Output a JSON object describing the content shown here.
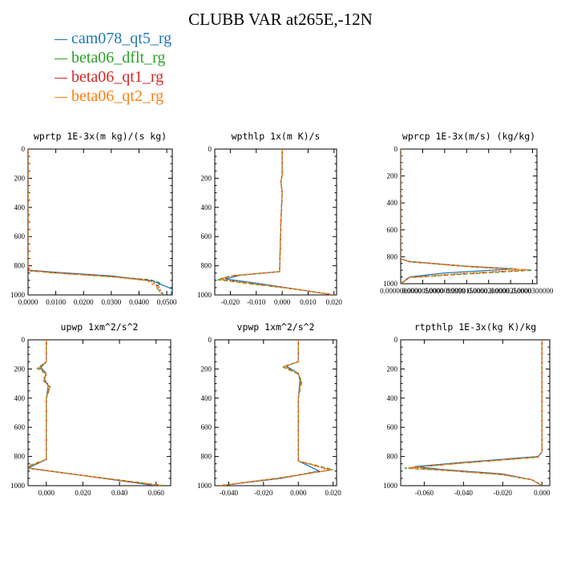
{
  "title": "CLUBB VAR at265E,-12N",
  "legend": [
    {
      "name": "cam078_qt5_rg",
      "color": "#1f77b4",
      "dash": ""
    },
    {
      "name": "beta06_dflt_rg",
      "color": "#2ca02c",
      "dash": "5,3"
    },
    {
      "name": "beta06_qt1_rg",
      "color": "#d62728",
      "dash": "2,2"
    },
    {
      "name": "beta06_qt2_rg",
      "color": "#ff7f0e",
      "dash": "4,2"
    }
  ],
  "chart_data": [
    {
      "type": "line",
      "title": "wprtp  1E-3x(m kg)/(s kg)",
      "xlim": [
        0.0,
        0.052
      ],
      "ylim": [
        1000,
        0
      ],
      "xticks": [
        "0.0000",
        "0.0100",
        "0.0200",
        "0.0300",
        "0.0400",
        "0.0500"
      ],
      "xtick_values": [
        0.0,
        0.01,
        0.02,
        0.03,
        0.04,
        0.05
      ],
      "yticks": [
        "0",
        "200",
        "400",
        "600",
        "800",
        "1000"
      ],
      "ytick_values": [
        0,
        200,
        400,
        600,
        800,
        1000
      ],
      "series": [
        {
          "x": [
            0,
            0,
            0.0004,
            0.01,
            0.03,
            0.045,
            0.052,
            0.0515
          ],
          "y": [
            0,
            800,
            830,
            845,
            870,
            905,
            960,
            1000
          ]
        },
        {
          "x": [
            0,
            0,
            0.0004,
            0.01,
            0.03,
            0.044,
            0.048,
            0.046,
            0.049
          ],
          "y": [
            0,
            800,
            835,
            850,
            875,
            895,
            920,
            945,
            1000
          ]
        },
        {
          "x": [
            0,
            0,
            0.0004,
            0.01,
            0.03,
            0.044,
            0.047,
            0.0485
          ],
          "y": [
            0,
            800,
            832,
            848,
            873,
            900,
            940,
            1000
          ]
        },
        {
          "x": [
            0,
            0,
            0.0004,
            0.01,
            0.03,
            0.043,
            0.0465,
            0.048
          ],
          "y": [
            0,
            800,
            834,
            850,
            876,
            902,
            945,
            1000
          ]
        }
      ]
    },
    {
      "type": "line",
      "title": "wpthlp  1x(m K)/s",
      "xlim": [
        -0.026,
        0.021
      ],
      "ylim": [
        1000,
        0
      ],
      "xticks": [
        "-0.020",
        "-0.010",
        "0.000",
        "0.010",
        "0.020"
      ],
      "xtick_values": [
        -0.02,
        -0.01,
        0.0,
        0.01,
        0.02
      ],
      "yticks": [
        "0",
        "200",
        "400",
        "600",
        "800",
        "1000"
      ],
      "ytick_values": [
        0,
        200,
        400,
        600,
        800,
        1000
      ],
      "series": [
        {
          "x": [
            0,
            0,
            -0.0005,
            0,
            -0.0005,
            -0.001,
            -0.016,
            -0.022,
            -0.01,
            0.005,
            0.02
          ],
          "y": [
            0,
            180,
            220,
            300,
            500,
            840,
            865,
            890,
            920,
            960,
            1000
          ]
        },
        {
          "x": [
            0,
            0,
            -0.0005,
            0,
            -0.0005,
            -0.001,
            -0.02,
            -0.025,
            -0.012,
            0.005,
            0.02
          ],
          "y": [
            0,
            180,
            220,
            300,
            500,
            840,
            870,
            895,
            925,
            960,
            1000
          ]
        },
        {
          "x": [
            0,
            0,
            -0.0005,
            0,
            -0.0005,
            -0.001,
            -0.019,
            -0.024,
            -0.011,
            0.005,
            0.02
          ],
          "y": [
            0,
            180,
            220,
            300,
            500,
            840,
            868,
            893,
            923,
            960,
            1000
          ]
        },
        {
          "x": [
            0,
            0,
            -0.0005,
            0,
            -0.0005,
            -0.001,
            -0.019,
            -0.024,
            -0.011,
            0.005,
            0.02
          ],
          "y": [
            0,
            180,
            220,
            300,
            500,
            840,
            868,
            894,
            924,
            960,
            1000
          ]
        }
      ]
    },
    {
      "type": "line",
      "title": "wprcp  1E-3x(m/s) (kg/kg)",
      "xlim": [
        0.0,
        3.1e-05
      ],
      "ylim": [
        1000,
        0
      ],
      "xticks": [
        "0.0000000000",
        "0.0000050000",
        "0.0000099999",
        "0.0000150000",
        "0.0000200000",
        "0.0000250000",
        "0.0000300000"
      ],
      "xtick_values": [
        0.0,
        5e-06,
        9.9999e-06,
        1.5e-05,
        2e-05,
        2.5e-05,
        3e-05
      ],
      "yticks": [
        "0",
        "200",
        "400",
        "600",
        "800",
        "1000"
      ],
      "ytick_values": [
        0,
        200,
        400,
        600,
        800,
        1000
      ],
      "series": [
        {
          "x": [
            0,
            0,
            2e-06,
            1.5e-05,
            2.6e-05,
            1e-05,
            2e-06,
            0
          ],
          "y": [
            0,
            815,
            835,
            870,
            890,
            920,
            950,
            1000
          ]
        },
        {
          "x": [
            0,
            0,
            2e-06,
            1.6e-05,
            3e-05,
            1.4e-05,
            2e-06,
            0
          ],
          "y": [
            0,
            815,
            838,
            875,
            900,
            930,
            955,
            1000
          ]
        },
        {
          "x": [
            0,
            0,
            2e-06,
            1.6e-05,
            2.9e-05,
            1.3e-05,
            2e-06,
            0
          ],
          "y": [
            0,
            815,
            836,
            873,
            897,
            927,
            953,
            1000
          ]
        },
        {
          "x": [
            0,
            0,
            2e-06,
            1.6e-05,
            2.9e-05,
            1.3e-05,
            2e-06,
            0
          ],
          "y": [
            0,
            815,
            837,
            874,
            898,
            928,
            954,
            1000
          ]
        }
      ]
    },
    {
      "type": "line",
      "title": "upwp  1xm^2/s^2",
      "xlim": [
        -0.01,
        0.068
      ],
      "ylim": [
        1000,
        0
      ],
      "xticks": [
        "0.000",
        "0.020",
        "0.040",
        "0.060"
      ],
      "xtick_values": [
        0.0,
        0.02,
        0.04,
        0.06
      ],
      "yticks": [
        "0",
        "200",
        "400",
        "600",
        "800",
        "1000"
      ],
      "ytick_values": [
        0,
        200,
        400,
        600,
        800,
        1000
      ],
      "series": [
        {
          "x": [
            0,
            0,
            -0.003,
            0,
            -0.001,
            0.001,
            0,
            0,
            -0.01,
            0.02,
            0.06
          ],
          "y": [
            0,
            150,
            190,
            230,
            270,
            320,
            400,
            820,
            880,
            930,
            1000
          ]
        },
        {
          "x": [
            0,
            0,
            -0.005,
            0,
            -0.002,
            0.002,
            0,
            0,
            -0.012,
            0.02,
            0.065
          ],
          "y": [
            0,
            150,
            195,
            235,
            275,
            325,
            400,
            820,
            875,
            930,
            1000
          ]
        },
        {
          "x": [
            0,
            0,
            -0.004,
            0,
            -0.001,
            0.002,
            0,
            0,
            -0.011,
            0.02,
            0.062
          ],
          "y": [
            0,
            150,
            192,
            232,
            272,
            322,
            400,
            820,
            878,
            930,
            1000
          ]
        },
        {
          "x": [
            0,
            0,
            -0.004,
            0,
            -0.0015,
            0.0015,
            0,
            0,
            -0.011,
            0.02,
            0.064
          ],
          "y": [
            0,
            150,
            193,
            233,
            273,
            323,
            400,
            820,
            877,
            930,
            1000
          ]
        }
      ]
    },
    {
      "type": "line",
      "title": "vpwp  1xm^2/s^2",
      "xlim": [
        -0.048,
        0.022
      ],
      "ylim": [
        1000,
        0
      ],
      "xticks": [
        "-0.040",
        "-0.020",
        "0.000",
        "0.020"
      ],
      "xtick_values": [
        -0.04,
        -0.02,
        0.0,
        0.02
      ],
      "yticks": [
        "0",
        "200",
        "400",
        "600",
        "800",
        "1000"
      ],
      "ytick_values": [
        0,
        200,
        400,
        600,
        800,
        1000
      ],
      "series": [
        {
          "x": [
            0,
            0,
            -0.007,
            0,
            0.001,
            0,
            0,
            0.012,
            -0.01,
            -0.045
          ],
          "y": [
            0,
            150,
            180,
            230,
            280,
            400,
            830,
            900,
            950,
            1000
          ]
        },
        {
          "x": [
            0,
            0,
            -0.009,
            0,
            0.002,
            0,
            0,
            0.02,
            -0.01,
            -0.045
          ],
          "y": [
            0,
            150,
            185,
            235,
            285,
            400,
            830,
            890,
            945,
            1000
          ]
        },
        {
          "x": [
            0,
            0,
            -0.008,
            0,
            0.0015,
            0,
            0,
            0.018,
            -0.01,
            -0.045
          ],
          "y": [
            0,
            150,
            183,
            232,
            282,
            400,
            830,
            893,
            947,
            1000
          ]
        },
        {
          "x": [
            0,
            0,
            -0.008,
            0,
            0.0015,
            0,
            0,
            0.019,
            -0.01,
            -0.045
          ],
          "y": [
            0,
            150,
            184,
            233,
            283,
            400,
            830,
            892,
            946,
            1000
          ]
        }
      ]
    },
    {
      "type": "line",
      "title": "rtpthlp  1E-3x(kg K)/kg",
      "xlim": [
        -0.072,
        0.004
      ],
      "ylim": [
        1000,
        0
      ],
      "xticks": [
        "-0.060",
        "-0.040",
        "-0.020",
        "0.000"
      ],
      "xtick_values": [
        -0.06,
        -0.04,
        -0.02,
        0.0
      ],
      "yticks": [
        "0",
        "200",
        "400",
        "600",
        "800",
        "1000"
      ],
      "ytick_values": [
        0,
        200,
        400,
        600,
        800,
        1000
      ],
      "series": [
        {
          "x": [
            0,
            0,
            -0.002,
            -0.04,
            -0.065,
            -0.05,
            -0.02,
            -0.005,
            0
          ],
          "y": [
            0,
            770,
            800,
            840,
            870,
            890,
            920,
            960,
            1000
          ]
        },
        {
          "x": [
            0,
            0,
            -0.002,
            -0.045,
            -0.07,
            -0.05,
            -0.02,
            -0.005,
            0
          ],
          "y": [
            0,
            770,
            805,
            850,
            880,
            895,
            925,
            960,
            1000
          ]
        },
        {
          "x": [
            0,
            0,
            -0.002,
            -0.043,
            -0.068,
            -0.05,
            -0.02,
            -0.005,
            0
          ],
          "y": [
            0,
            770,
            803,
            847,
            877,
            893,
            923,
            960,
            1000
          ]
        },
        {
          "x": [
            0,
            0,
            -0.002,
            -0.043,
            -0.068,
            -0.05,
            -0.02,
            -0.005,
            0
          ],
          "y": [
            0,
            770,
            804,
            848,
            878,
            894,
            924,
            960,
            1000
          ]
        }
      ]
    }
  ]
}
